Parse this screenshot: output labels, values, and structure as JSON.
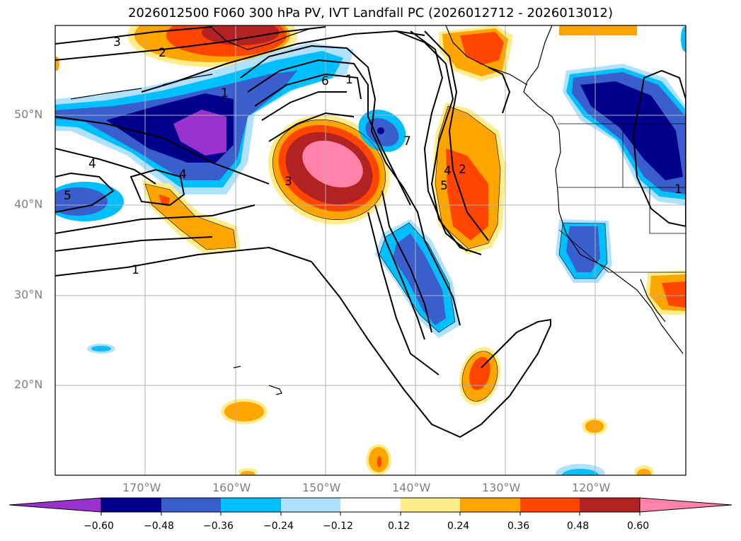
{
  "title": "2026012500 F060 300 hPa PV, IVT Landfall PC (2026012712 - 2026013012)",
  "lat_labels": [
    "50°N",
    "40°N",
    "30°N",
    "20°N"
  ],
  "lon_labels": [
    "170°W",
    "160°W",
    "150°W",
    "140°W",
    "130°W",
    "120°W"
  ],
  "contour_labels": [
    "3",
    "2",
    "1",
    "1",
    "6",
    "1",
    "7",
    "4",
    "4",
    "5",
    "3",
    "4",
    "2",
    "5",
    "1"
  ],
  "colorbar": {
    "ticks": [
      "−0.60",
      "−0.48",
      "−0.36",
      "−0.24",
      "−0.12",
      "0.12",
      "0.24",
      "0.36",
      "0.48",
      "0.60"
    ],
    "colors": [
      "#9932CC",
      "#00008B",
      "#3A5FCD",
      "#00BFFF",
      "#B0E2FF",
      "#FFFFFF",
      "#FFEC8B",
      "#FFA500",
      "#FF4500",
      "#B22222",
      "#FF82AB"
    ]
  },
  "colors": {
    "purple": "#9932CC",
    "navy": "#00008B",
    "royal": "#3A5FCD",
    "sky": "#00BFFF",
    "light_blue": "#B0E2FF",
    "light_yellow": "#FFEC8B",
    "orange": "#FFA500",
    "orange_red": "#FF4500",
    "firebrick": "#B22222",
    "pink": "#FF82AB"
  }
}
